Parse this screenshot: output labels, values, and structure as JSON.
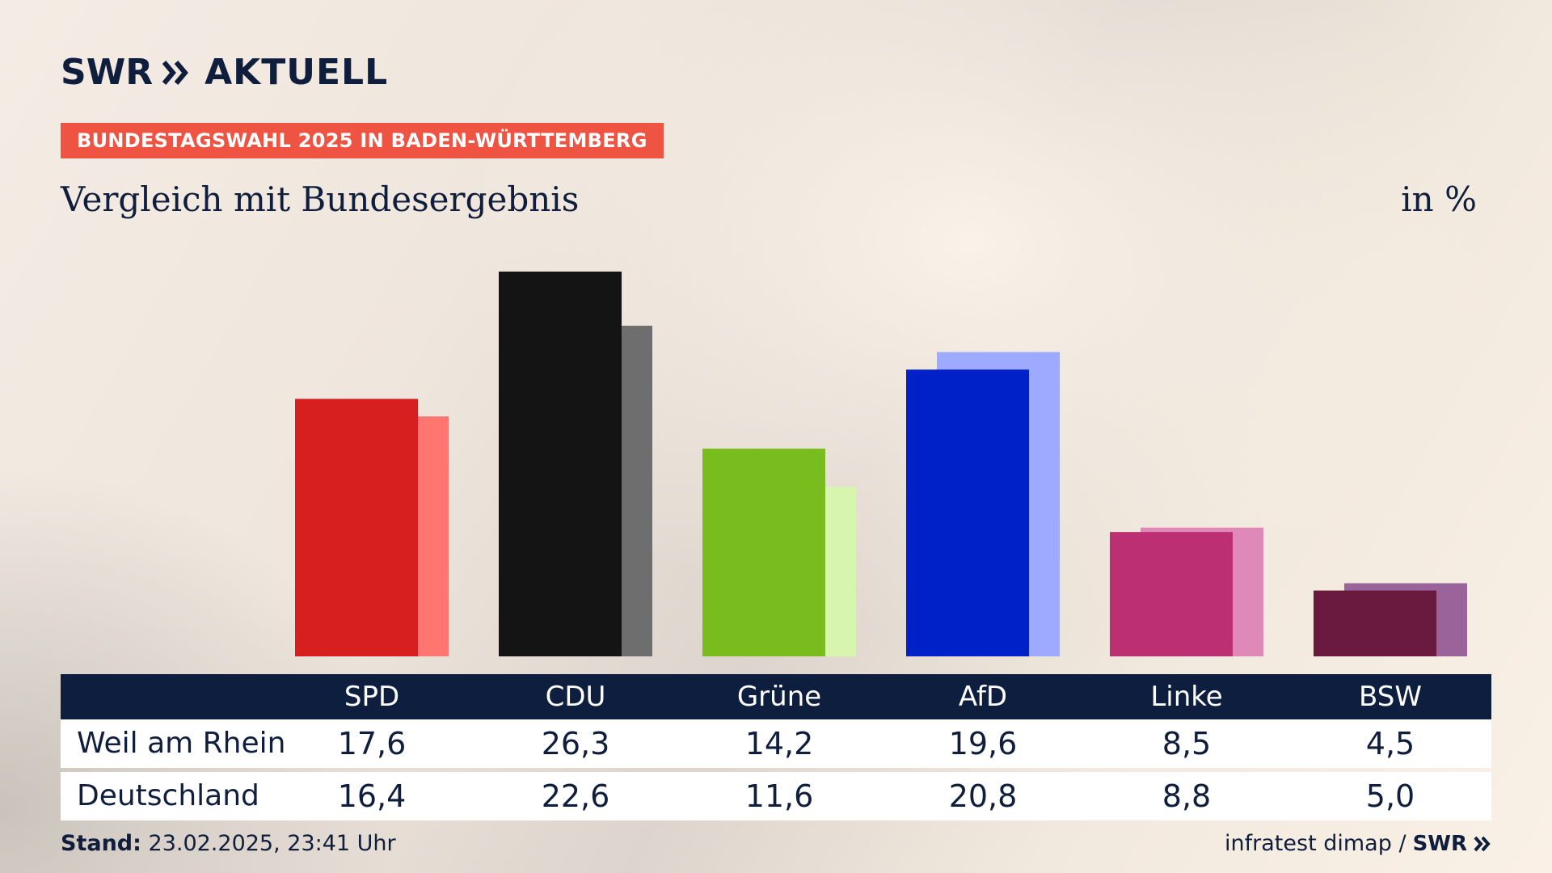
{
  "brand": {
    "logo_text": "SWR",
    "product": "AKTUELL",
    "footer_logo": "SWR"
  },
  "header": {
    "tag": "BUNDESTAGSWAHL 2025 IN BADEN-WÜRTTEMBERG",
    "tag_color": "#ee5441",
    "subtitle": "Vergleich mit Bundesergebnis",
    "unit": "in %"
  },
  "chart_data": {
    "type": "bar",
    "categories": [
      "SPD",
      "CDU",
      "Grüne",
      "AfD",
      "Linke",
      "BSW"
    ],
    "series": [
      {
        "name": "Weil am Rhein",
        "values": [
          17.6,
          26.3,
          14.2,
          19.6,
          8.5,
          4.5
        ],
        "colors": [
          "#d71f1f",
          "#141414",
          "#78bc1e",
          "#0020c8",
          "#bc3073",
          "#6a193f"
        ]
      },
      {
        "name": "Deutschland",
        "values": [
          16.4,
          22.6,
          11.6,
          20.8,
          8.8,
          5.0
        ],
        "colors": [
          "#ff7570",
          "#6e6e6e",
          "#d8f5b0",
          "#9eaaff",
          "#de89b7",
          "#9a649a"
        ]
      }
    ],
    "legend": "table-below"
  },
  "table": {
    "header_bg": "#0e1e3e",
    "columns": [
      "SPD",
      "CDU",
      "Grüne",
      "AfD",
      "Linke",
      "BSW"
    ],
    "rows": [
      {
        "label": "Weil am Rhein",
        "values": [
          "17,6",
          "26,3",
          "14,2",
          "19,6",
          "8,5",
          "4,5"
        ]
      },
      {
        "label": "Deutschland",
        "values": [
          "16,4",
          "22,6",
          "11,6",
          "20,8",
          "8,8",
          "5,0"
        ]
      }
    ]
  },
  "footer": {
    "stand_label": "Stand:",
    "stand_value": "23.02.2025, 23:41 Uhr",
    "source": "infratest dimap /"
  }
}
